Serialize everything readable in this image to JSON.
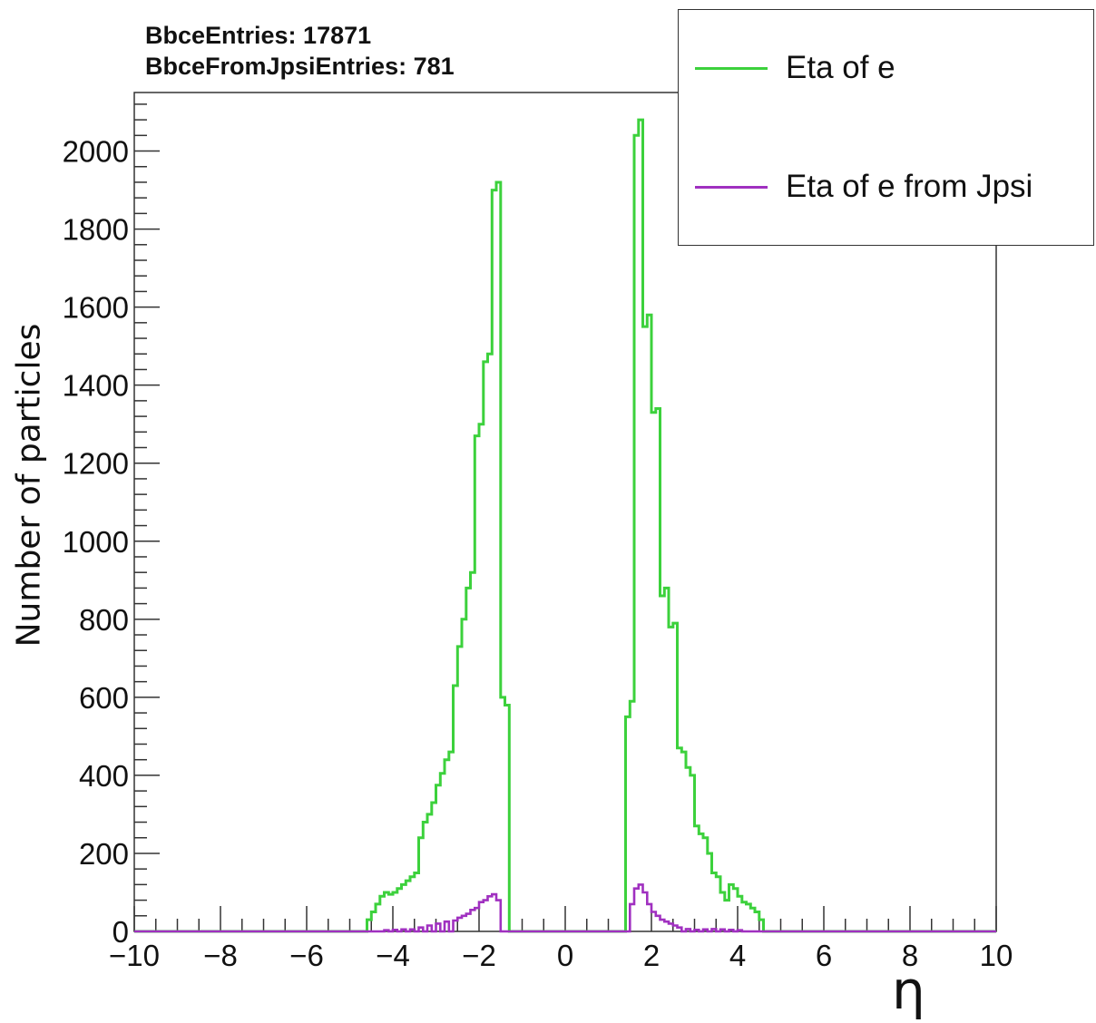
{
  "stats": {
    "entries_label": "BbceEntries: 17871",
    "jpsi_entries_label": "BbceFromJpsiEntries: 781"
  },
  "colors": {
    "green": "#3cd13c",
    "purple": "#a030c0",
    "axis": "#333333"
  },
  "chart_data": {
    "type": "line",
    "style": "step-histogram",
    "title": "",
    "xlabel": "η",
    "ylabel": "Number of particles",
    "xlim": [
      -10,
      10
    ],
    "ylim": [
      0,
      2150
    ],
    "x_ticks": [
      "−10",
      "−8",
      "−6",
      "−4",
      "−2",
      "0",
      "2",
      "4",
      "6",
      "8",
      "10"
    ],
    "y_ticks": [
      "0",
      "200",
      "400",
      "600",
      "800",
      "1000",
      "1200",
      "1400",
      "1600",
      "1800",
      "2000"
    ],
    "grid": false,
    "legend": "top-right",
    "bin_edges_range": [
      -10,
      10
    ],
    "bin_count": 200,
    "series": [
      {
        "name": "Eta of e",
        "color": "#3cd13c",
        "bins": [
          [
            -4.6,
            30
          ],
          [
            -4.5,
            50
          ],
          [
            -4.4,
            70
          ],
          [
            -4.3,
            90
          ],
          [
            -4.2,
            100
          ],
          [
            -4.1,
            95
          ],
          [
            -4.0,
            100
          ],
          [
            -3.9,
            110
          ],
          [
            -3.8,
            120
          ],
          [
            -3.7,
            130
          ],
          [
            -3.6,
            140
          ],
          [
            -3.5,
            150
          ],
          [
            -3.4,
            240
          ],
          [
            -3.3,
            280
          ],
          [
            -3.2,
            300
          ],
          [
            -3.1,
            330
          ],
          [
            -3.0,
            375
          ],
          [
            -2.9,
            405
          ],
          [
            -2.8,
            440
          ],
          [
            -2.7,
            460
          ],
          [
            -2.6,
            630
          ],
          [
            -2.5,
            730
          ],
          [
            -2.4,
            800
          ],
          [
            -2.3,
            880
          ],
          [
            -2.2,
            920
          ],
          [
            -2.1,
            1270
          ],
          [
            -2.0,
            1300
          ],
          [
            -1.9,
            1460
          ],
          [
            -1.8,
            1480
          ],
          [
            -1.7,
            1900
          ],
          [
            -1.6,
            1920
          ],
          [
            -1.5,
            600
          ],
          [
            -1.4,
            580
          ],
          [
            1.4,
            550
          ],
          [
            1.5,
            590
          ],
          [
            1.6,
            2040
          ],
          [
            1.7,
            2080
          ],
          [
            1.8,
            1550
          ],
          [
            1.9,
            1580
          ],
          [
            2.0,
            1330
          ],
          [
            2.1,
            1340
          ],
          [
            2.2,
            860
          ],
          [
            2.3,
            880
          ],
          [
            2.4,
            780
          ],
          [
            2.5,
            790
          ],
          [
            2.6,
            470
          ],
          [
            2.7,
            460
          ],
          [
            2.8,
            420
          ],
          [
            2.9,
            400
          ],
          [
            3.0,
            270
          ],
          [
            3.1,
            250
          ],
          [
            3.2,
            240
          ],
          [
            3.3,
            200
          ],
          [
            3.4,
            150
          ],
          [
            3.5,
            140
          ],
          [
            3.6,
            100
          ],
          [
            3.7,
            80
          ],
          [
            3.8,
            120
          ],
          [
            3.9,
            110
          ],
          [
            4.0,
            90
          ],
          [
            4.1,
            75
          ],
          [
            4.2,
            70
          ],
          [
            4.3,
            60
          ],
          [
            4.4,
            50
          ],
          [
            4.5,
            30
          ]
        ]
      },
      {
        "name": "Eta of e from Jpsi",
        "color": "#a030c0",
        "bins": [
          [
            -4.2,
            3
          ],
          [
            -4.0,
            4
          ],
          [
            -3.8,
            5
          ],
          [
            -3.6,
            5
          ],
          [
            -3.4,
            10
          ],
          [
            -3.2,
            15
          ],
          [
            -3.0,
            20
          ],
          [
            -2.8,
            25
          ],
          [
            -2.6,
            28
          ],
          [
            -2.5,
            35
          ],
          [
            -2.4,
            40
          ],
          [
            -2.3,
            45
          ],
          [
            -2.2,
            55
          ],
          [
            -2.1,
            60
          ],
          [
            -2.0,
            75
          ],
          [
            -1.9,
            80
          ],
          [
            -1.8,
            90
          ],
          [
            -1.7,
            95
          ],
          [
            -1.6,
            80
          ],
          [
            -1.5,
            0
          ],
          [
            1.4,
            0
          ],
          [
            1.5,
            70
          ],
          [
            1.6,
            110
          ],
          [
            1.7,
            120
          ],
          [
            1.8,
            100
          ],
          [
            1.9,
            70
          ],
          [
            2.0,
            50
          ],
          [
            2.1,
            40
          ],
          [
            2.2,
            30
          ],
          [
            2.3,
            25
          ],
          [
            2.4,
            20
          ],
          [
            2.5,
            15
          ],
          [
            2.6,
            10
          ],
          [
            2.8,
            6
          ],
          [
            3.0,
            4
          ],
          [
            3.2,
            5
          ],
          [
            3.4,
            6
          ],
          [
            3.6,
            5
          ],
          [
            3.8,
            4
          ],
          [
            4.0,
            3
          ]
        ]
      }
    ]
  }
}
